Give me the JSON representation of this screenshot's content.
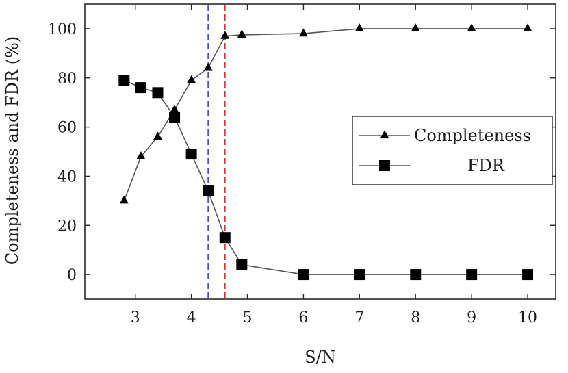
{
  "chart_data": {
    "type": "line",
    "xlabel": "S/N",
    "ylabel": "Completeness and FDR (%)",
    "xlim": [
      2.1,
      10.5
    ],
    "ylim": [
      -10,
      110
    ],
    "xticks": [
      3,
      4,
      5,
      6,
      7,
      8,
      9,
      10
    ],
    "yticks": [
      0,
      20,
      40,
      60,
      80,
      100
    ],
    "grid": false,
    "legend_position": "center-right",
    "vertical_lines": [
      {
        "x": 4.3,
        "color": "#4a4af0",
        "style": "dashed"
      },
      {
        "x": 4.6,
        "color": "#e8302e",
        "style": "dashed"
      }
    ],
    "series": [
      {
        "name": "Completeness",
        "marker": "triangle",
        "color": "#000000",
        "x": [
          2.8,
          3.1,
          3.4,
          3.7,
          4.0,
          4.3,
          4.6,
          4.9,
          6,
          7,
          8,
          9,
          10
        ],
        "y": [
          30,
          48,
          56,
          67,
          79,
          84,
          97,
          97.5,
          98,
          100,
          100,
          100,
          100
        ]
      },
      {
        "name": "FDR",
        "marker": "square",
        "color": "#000000",
        "x": [
          2.8,
          3.1,
          3.4,
          3.7,
          4.0,
          4.3,
          4.6,
          4.9,
          6,
          7,
          8,
          9,
          10
        ],
        "y": [
          79,
          76,
          74,
          64,
          49,
          34,
          15,
          4,
          0,
          0,
          0,
          0,
          0
        ]
      }
    ]
  }
}
